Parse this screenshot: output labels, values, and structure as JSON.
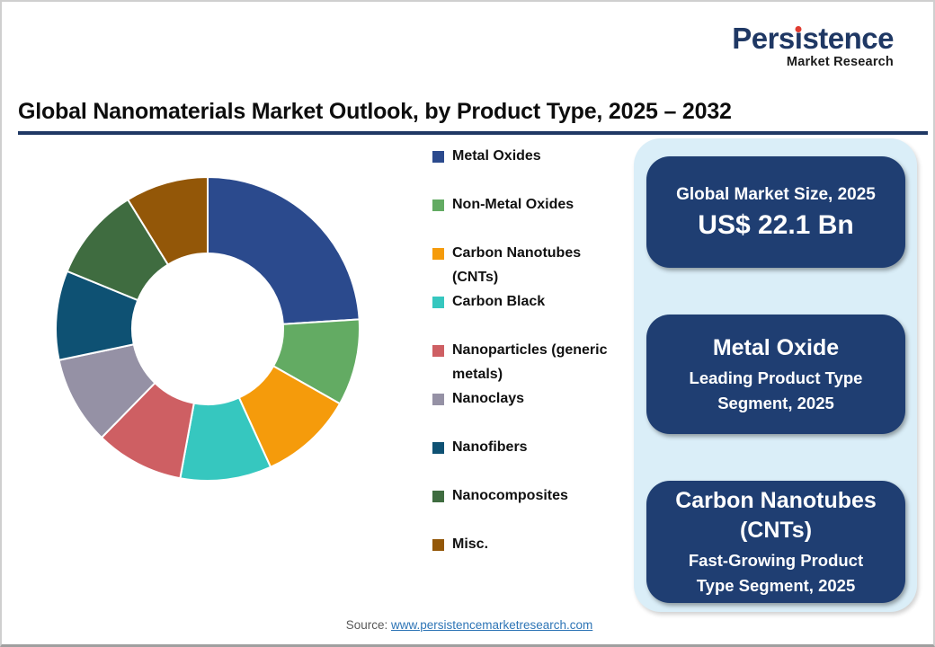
{
  "logo": {
    "wordmark": "Persistence",
    "wordmark_parts": {
      "pre": "Pers",
      "i": "ı",
      "post": "stence"
    },
    "tagline": "Market Research",
    "navy": "#1F3864",
    "dot_red": "#E03C31"
  },
  "header": {
    "title": "Global Nanomaterials Market Outlook, by Product Type, 2025 – 2032",
    "underline_color": "#1F3864"
  },
  "chart_data": {
    "type": "pie",
    "donut": true,
    "inner_radius_ratio": 0.5,
    "start_angle_deg": 0,
    "direction": "clockwise",
    "title": "Global Nanomaterials Market Outlook, by Product Type, 2025 – 2032",
    "categories": [
      "Metal Oxides",
      "Non-Metal Oxides",
      "Carbon Nanotubes (CNTs)",
      "Carbon Black",
      "Nanoparticles (generic metals)",
      "Nanoclays",
      "Nanofibers",
      "Nanocomposites",
      "Misc."
    ],
    "values": [
      24.0,
      9.2,
      10.0,
      9.7,
      9.4,
      9.4,
      9.5,
      10.0,
      8.8
    ],
    "colors": [
      "#2B4A8D",
      "#63AB63",
      "#F59B0B",
      "#36C7BF",
      "#CE5F63",
      "#9591A5",
      "#0E5173",
      "#3F6C40",
      "#935708"
    ],
    "legend_position": "right"
  },
  "legend": {
    "items": [
      {
        "label": "Metal Oxides",
        "color": "#2B4A8D"
      },
      {
        "label": "Non-Metal Oxides",
        "color": "#63AB63"
      },
      {
        "label": "Carbon Nanotubes\n(CNTs)",
        "color": "#F59B0B"
      },
      {
        "label": "Carbon Black",
        "color": "#36C7BF"
      },
      {
        "label": "Nanoparticles (generic\nmetals)",
        "color": "#CE5F63"
      },
      {
        "label": "Nanoclays",
        "color": "#9591A5"
      },
      {
        "label": "Nanofibers",
        "color": "#0E5173"
      },
      {
        "label": "Nanocomposites",
        "color": "#3F6C40"
      },
      {
        "label": "Misc.",
        "color": "#935708"
      }
    ]
  },
  "panel": {
    "background": "#DAEEF8",
    "box_background": "#1F3E72",
    "boxes": [
      {
        "title": "Global Market Size, 2025",
        "value": "US$ 22.1 Bn"
      },
      {
        "title": "Metal Oxide",
        "subtitle": "Leading Product Type\nSegment, 2025"
      },
      {
        "title": "Carbon Nanotubes\n(CNTs)",
        "subtitle": "Fast-Growing Product\nType Segment, 2025"
      }
    ]
  },
  "source": {
    "prefix": "Source: ",
    "link_text": "www.persistencemarketresearch.com"
  }
}
